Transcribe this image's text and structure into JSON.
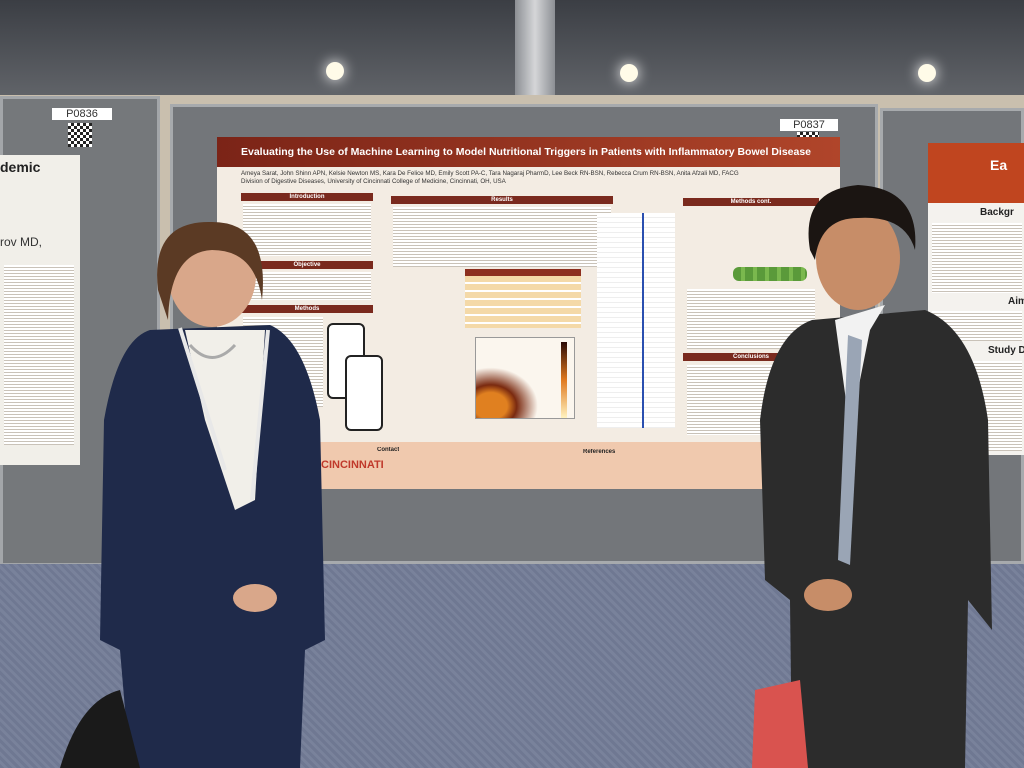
{
  "board_labels": [
    "P0836",
    "P0837"
  ],
  "poster": {
    "title": "Evaluating the Use of Machine Learning to Model Nutritional Triggers in Patients with Inflammatory Bowel Disease",
    "authors": "Ameya Sarat, John Shinn APN, Kelsie Newton MS, Kara De Felice MD, Emily Scott PA-C, Tara Nagaraj PharmD, Lee Beck RN-BSN, Rebecca Crum RN-BSN, Anita Afzali MD, FACG",
    "affiliation": "Division of Digestive Diseases, University of Cincinnati College of Medicine, Cincinnati, OH, USA",
    "sections": [
      "Introduction",
      "Objective",
      "Methods",
      "Results",
      "Methods cont.",
      "Conclusions",
      "Contact",
      "References"
    ],
    "logo": "CINCINNATI"
  },
  "left_poster": {
    "heading": "demic",
    "author_fragment": "rov MD,"
  },
  "right_poster": {
    "heading": "Ea",
    "sections": [
      "Backgr",
      "Aim",
      "Study Des"
    ]
  }
}
